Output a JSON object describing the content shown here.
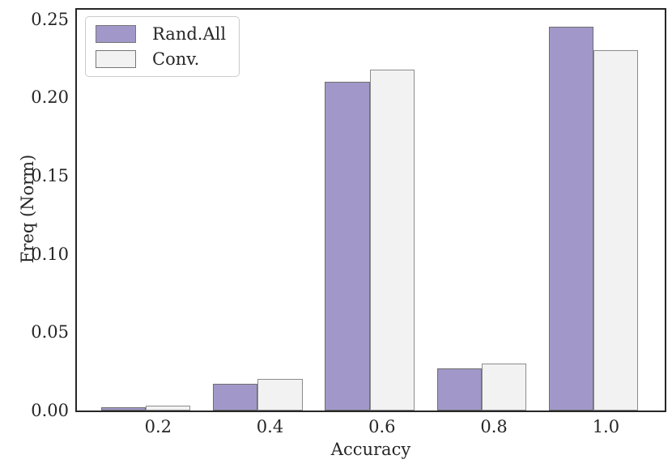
{
  "chart_data": {
    "type": "bar",
    "title": "",
    "xlabel": "Accuracy",
    "ylabel": "Freq (Norm)",
    "categories": [
      0.2,
      0.4,
      0.6,
      0.8,
      1.0
    ],
    "x_tick_labels": [
      "0.2",
      "0.4",
      "0.6",
      "0.8",
      "1.0"
    ],
    "y_ticks": [
      0.0,
      0.05,
      0.1,
      0.15,
      0.2,
      0.25
    ],
    "y_tick_labels": [
      "0.00",
      "0.05",
      "0.10",
      "0.15",
      "0.20",
      "0.25"
    ],
    "series": [
      {
        "name": "Rand.All",
        "values": [
          0.002,
          0.017,
          0.21,
          0.027,
          0.245
        ],
        "fill": "#a198c9",
        "edge": "#6e6e6e"
      },
      {
        "name": "Conv.",
        "values": [
          0.003,
          0.02,
          0.218,
          0.03,
          0.23
        ],
        "fill": "#f2f2f2",
        "edge": "#8c8c8c"
      }
    ],
    "xlim": [
      0.055,
      1.105
    ],
    "ylim": [
      0,
      0.256
    ],
    "grid": false,
    "legend_position": "upper-left",
    "group_center_offset": -0.022,
    "bar_width_units": 0.08
  },
  "colors": {
    "background": "#ffffff",
    "axis_frame": "#262626",
    "text": "#262626",
    "legend_border": "#cccccc",
    "swatch_border": "#767676"
  }
}
